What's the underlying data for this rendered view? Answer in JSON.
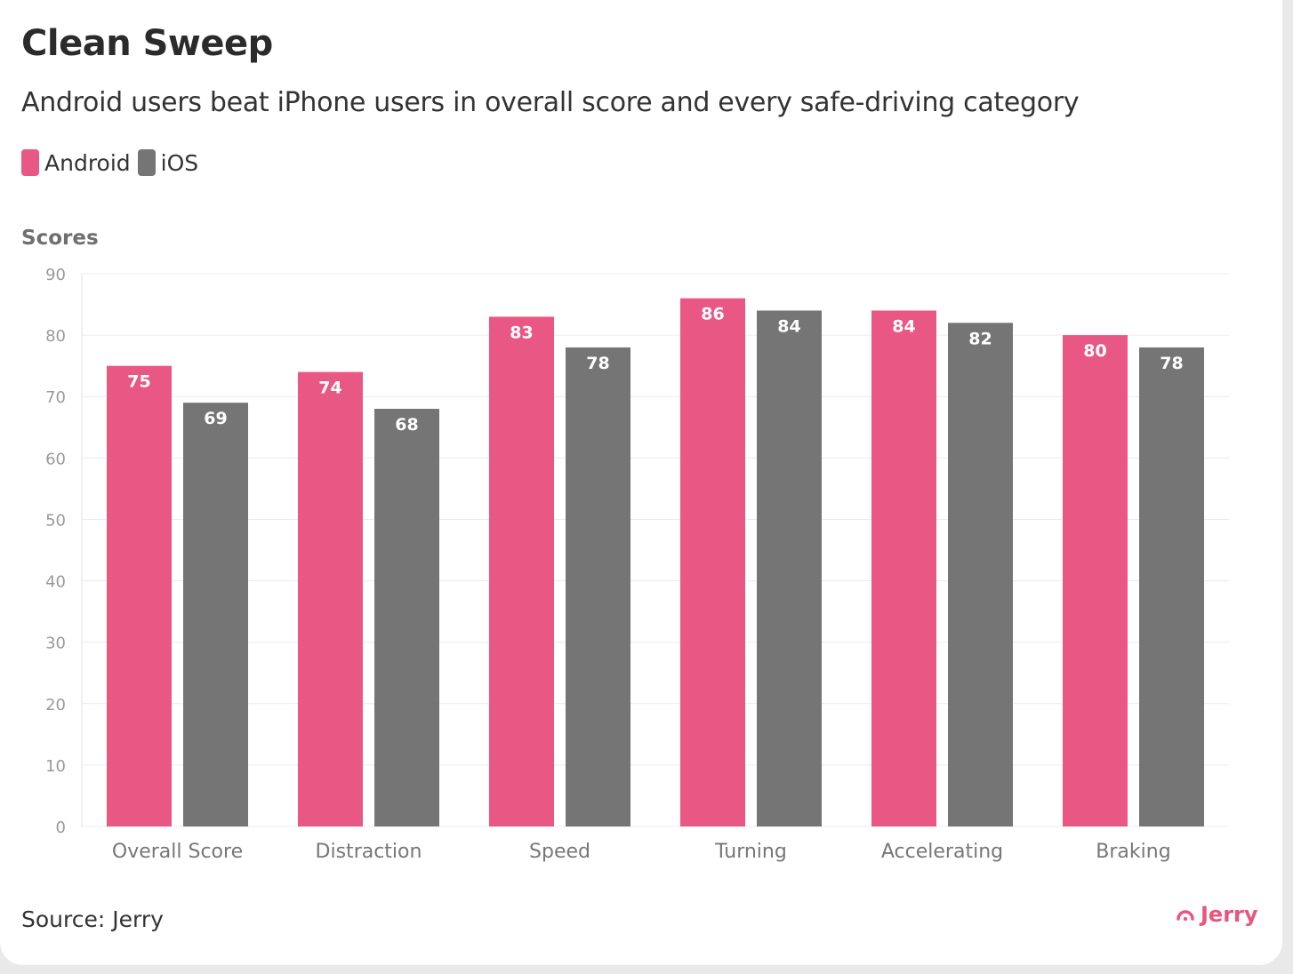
{
  "header": {
    "title": "Clean Sweep",
    "subtitle": "Android users beat iPhone users in overall score and every safe-driving category"
  },
  "legend": {
    "items": [
      {
        "label": "Android",
        "color": "#e95885"
      },
      {
        "label": "iOS",
        "color": "#757575"
      }
    ]
  },
  "chart_data": {
    "type": "bar",
    "title": "Clean Sweep",
    "subtitle": "Android users beat iPhone users in overall score and every safe-driving category",
    "ylabel": "Scores",
    "xlabel": "",
    "ylim": [
      0,
      90
    ],
    "yticks": [
      0,
      10,
      20,
      30,
      40,
      50,
      60,
      70,
      80,
      90
    ],
    "grid": true,
    "legend_position": "top-left",
    "categories": [
      "Overall Score",
      "Distraction",
      "Speed",
      "Turning",
      "Accelerating",
      "Braking"
    ],
    "series": [
      {
        "name": "Android",
        "color": "#e95885",
        "values": [
          75,
          74,
          83,
          86,
          84,
          80
        ]
      },
      {
        "name": "iOS",
        "color": "#757575",
        "values": [
          69,
          68,
          78,
          84,
          82,
          78
        ]
      }
    ]
  },
  "footer": {
    "source": "Source: Jerry",
    "brand": "Jerry",
    "brand_icon": "jerry-logo-icon"
  }
}
